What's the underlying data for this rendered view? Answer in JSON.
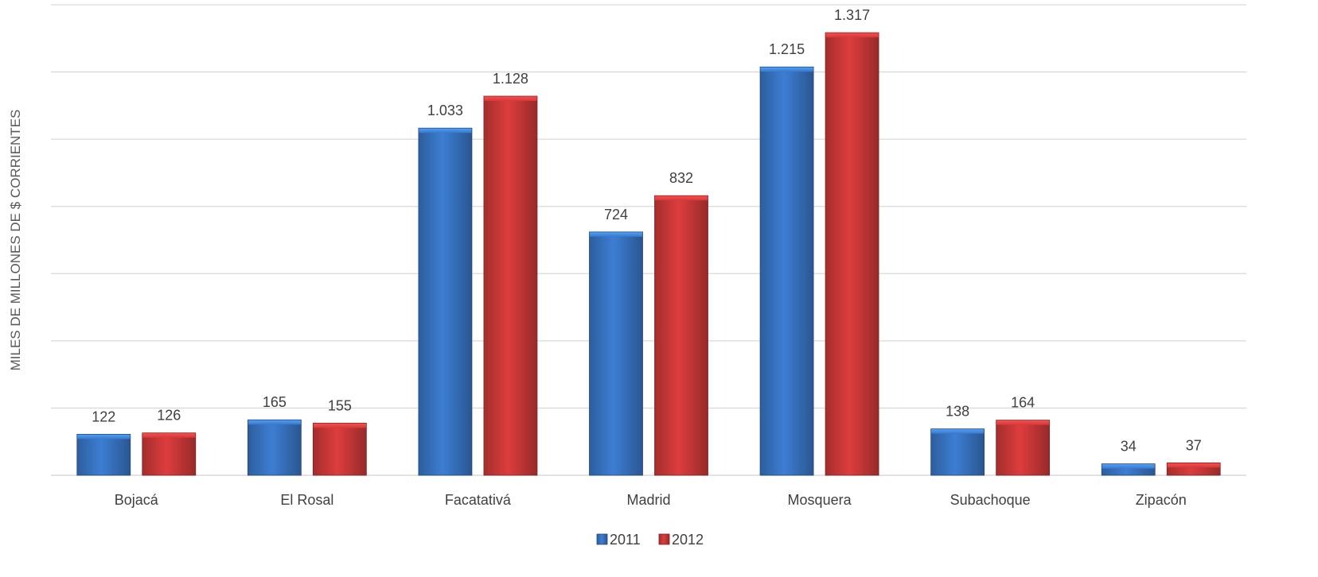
{
  "chart_data": {
    "type": "bar",
    "title": "",
    "xlabel": "",
    "ylabel": "MILES DE MILLONES  DE $ CORRIENTES",
    "categories": [
      "Bojacá",
      "El Rosal",
      "Facatativá",
      "Madrid",
      "Mosquera",
      "Subachoque",
      "Zipacón"
    ],
    "series": [
      {
        "name": "2011",
        "color": "#3a78c9",
        "values": [
          122,
          165,
          1033,
          724,
          1215,
          138,
          34
        ],
        "labels": [
          "122",
          "165",
          "1.033",
          "724",
          "1.215",
          "138",
          "34"
        ]
      },
      {
        "name": "2012",
        "color": "#d23a3a",
        "values": [
          126,
          155,
          1128,
          832,
          1317,
          164,
          37
        ],
        "labels": [
          "126",
          "155",
          "1.128",
          "832",
          "1.317",
          "164",
          "37"
        ]
      }
    ],
    "ylim": [
      0,
      1400
    ],
    "y_major_step": 200,
    "grid": true,
    "show_y_tick_labels": false,
    "legend_position": "bottom-center"
  }
}
